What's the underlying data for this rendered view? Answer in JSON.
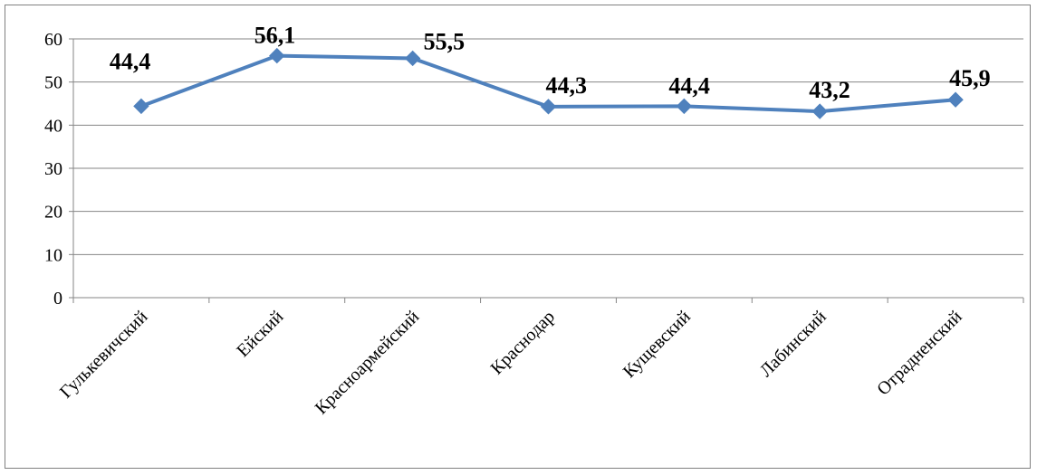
{
  "chart_data": {
    "type": "line",
    "title": "",
    "xlabel": "",
    "ylabel": "",
    "categories": [
      "Гулькевичский",
      "Ейский",
      "Красноармейский",
      "Краснодар",
      "Кущевский",
      "Лабинский",
      "Отрадненский"
    ],
    "series": [
      {
        "values": [
          44.4,
          56.1,
          55.5,
          44.3,
          44.4,
          43.2,
          45.9
        ],
        "labels": [
          "44,4",
          "56,1",
          "55,5",
          "44,3",
          "44,4",
          "43,2",
          "45,9"
        ],
        "color": "#4F81BD",
        "marker": "diamond"
      }
    ],
    "ylim": [
      0,
      60
    ],
    "yticks": [
      "0",
      "10",
      "20",
      "30",
      "40",
      "50",
      "60"
    ],
    "grid": true,
    "legend": "none"
  }
}
